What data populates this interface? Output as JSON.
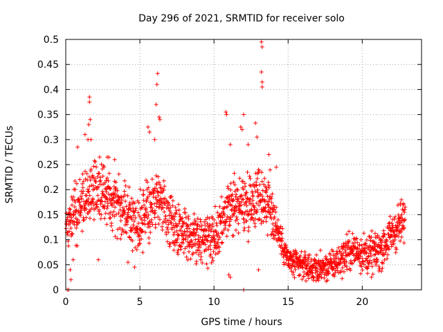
{
  "chart_data": {
    "type": "scatter",
    "title": "Day 296 of 2021, SRMTID for receiver solo",
    "xlabel": "GPS time / hours",
    "ylabel": "SRMTID / TECUs",
    "xlim": [
      0,
      24
    ],
    "ylim": [
      0,
      0.5
    ],
    "xticks": [
      0,
      5,
      10,
      15,
      20
    ],
    "yticks": [
      0,
      0.05,
      0.1,
      0.15,
      0.2,
      0.25,
      0.3,
      0.35,
      0.4,
      0.45,
      0.5
    ],
    "xtick_labels": [
      "0",
      "5",
      "10",
      "15",
      "20"
    ],
    "ytick_labels": [
      "0",
      "0.05",
      "0.1",
      "0.15",
      "0.2",
      "0.25",
      "0.3",
      "0.35",
      "0.4",
      "0.45",
      "0.5"
    ],
    "grid": true,
    "marker": "+",
    "color": "#ff0000",
    "trend": [
      [
        0.0,
        0.14
      ],
      [
        0.5,
        0.15
      ],
      [
        1.0,
        0.17
      ],
      [
        1.5,
        0.19
      ],
      [
        2.0,
        0.2
      ],
      [
        2.5,
        0.19
      ],
      [
        3.0,
        0.19
      ],
      [
        3.5,
        0.18
      ],
      [
        4.0,
        0.16
      ],
      [
        4.5,
        0.14
      ],
      [
        5.0,
        0.13
      ],
      [
        5.5,
        0.15
      ],
      [
        6.0,
        0.18
      ],
      [
        6.5,
        0.17
      ],
      [
        7.0,
        0.14
      ],
      [
        7.5,
        0.12
      ],
      [
        8.0,
        0.12
      ],
      [
        8.5,
        0.11
      ],
      [
        9.0,
        0.1
      ],
      [
        9.5,
        0.1
      ],
      [
        10.0,
        0.1
      ],
      [
        10.5,
        0.12
      ],
      [
        11.0,
        0.16
      ],
      [
        11.5,
        0.17
      ],
      [
        12.0,
        0.17
      ],
      [
        12.5,
        0.18
      ],
      [
        13.0,
        0.19
      ],
      [
        13.5,
        0.18
      ],
      [
        14.0,
        0.15
      ],
      [
        14.5,
        0.1
      ],
      [
        15.0,
        0.06
      ],
      [
        15.5,
        0.05
      ],
      [
        16.0,
        0.05
      ],
      [
        16.5,
        0.045
      ],
      [
        17.0,
        0.04
      ],
      [
        17.5,
        0.045
      ],
      [
        18.0,
        0.05
      ],
      [
        18.5,
        0.06
      ],
      [
        19.0,
        0.075
      ],
      [
        19.5,
        0.08
      ],
      [
        20.0,
        0.075
      ],
      [
        20.5,
        0.07
      ],
      [
        21.0,
        0.075
      ],
      [
        21.5,
        0.09
      ],
      [
        22.0,
        0.11
      ],
      [
        22.5,
        0.13
      ],
      [
        22.9,
        0.14
      ]
    ],
    "spread": [
      [
        0.0,
        0.035
      ],
      [
        4.5,
        0.045
      ],
      [
        7.0,
        0.035
      ],
      [
        10.0,
        0.035
      ],
      [
        14.0,
        0.045
      ],
      [
        14.5,
        0.02
      ],
      [
        18.0,
        0.02
      ],
      [
        19.0,
        0.025
      ],
      [
        23.0,
        0.03
      ]
    ],
    "outliers": [
      [
        1.6,
        0.385
      ],
      [
        1.6,
        0.375
      ],
      [
        1.65,
        0.34
      ],
      [
        1.55,
        0.33
      ],
      [
        1.5,
        0.3
      ],
      [
        1.7,
        0.3
      ],
      [
        6.2,
        0.432
      ],
      [
        6.15,
        0.41
      ],
      [
        6.1,
        0.37
      ],
      [
        6.3,
        0.345
      ],
      [
        6.35,
        0.34
      ],
      [
        5.55,
        0.325
      ],
      [
        5.65,
        0.315
      ],
      [
        6.0,
        0.3
      ],
      [
        10.8,
        0.355
      ],
      [
        10.85,
        0.35
      ],
      [
        12.0,
        0.35
      ],
      [
        11.8,
        0.325
      ],
      [
        11.9,
        0.32
      ],
      [
        12.8,
        0.333
      ],
      [
        13.2,
        0.495
      ],
      [
        13.25,
        0.485
      ],
      [
        13.2,
        0.435
      ],
      [
        13.25,
        0.415
      ],
      [
        13.25,
        0.405
      ],
      [
        12.9,
        0.305
      ],
      [
        1.3,
        0.31
      ],
      [
        0.8,
        0.285
      ],
      [
        2.8,
        0.265
      ],
      [
        3.3,
        0.26
      ],
      [
        11.1,
        0.29
      ],
      [
        12.3,
        0.29
      ],
      [
        13.7,
        0.27
      ],
      [
        14.2,
        0.245
      ],
      [
        0.3,
        0.04
      ],
      [
        0.35,
        0.02
      ],
      [
        0.5,
        0.06
      ],
      [
        2.2,
        0.06
      ],
      [
        4.2,
        0.055
      ],
      [
        11.0,
        0.03
      ],
      [
        11.1,
        0.025
      ],
      [
        13.0,
        0.04
      ],
      [
        0.1,
        0.0
      ],
      [
        0.2,
        0.0
      ],
      [
        12.0,
        0.0
      ]
    ]
  }
}
